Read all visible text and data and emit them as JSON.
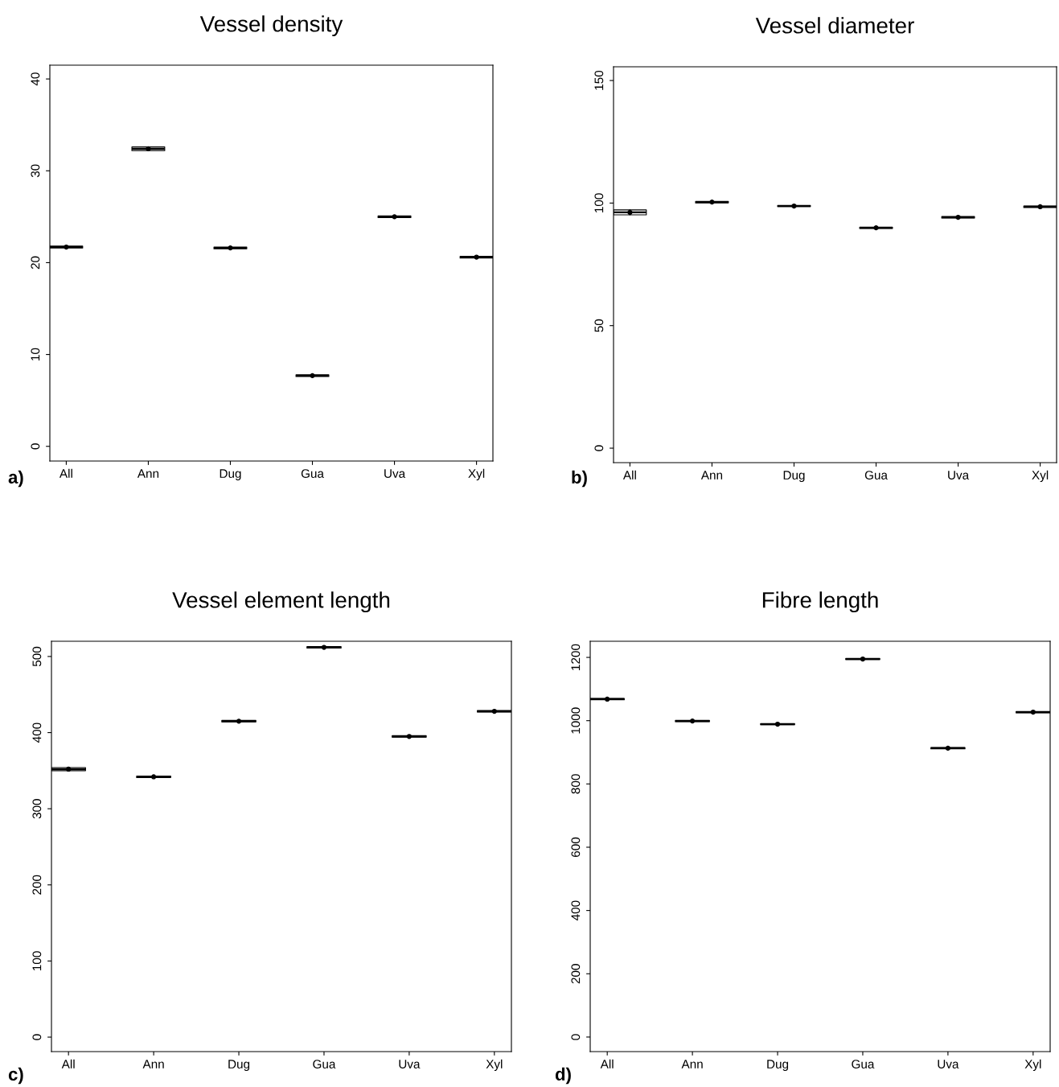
{
  "chart_data": [
    {
      "type": "box",
      "title": "Vessel density",
      "categories": [
        "All",
        "Ann",
        "Dug",
        "Gua",
        "Uva",
        "Xyl"
      ],
      "color": "#000000",
      "marker": "circle",
      "ylim": [
        -1.6,
        41.5
      ],
      "yticks": [
        0,
        10,
        20,
        30,
        40
      ],
      "grid": false,
      "annotations": [
        "a)"
      ],
      "boxes": [
        {
          "low": 21.6,
          "q1": 21.6,
          "median": 21.7,
          "q3": 21.8,
          "high": 21.8,
          "mean": 21.7
        },
        {
          "low": 32.2,
          "q1": 32.2,
          "median": 32.4,
          "q3": 32.6,
          "high": 32.6,
          "mean": 32.4
        },
        {
          "low": 21.5,
          "q1": 21.5,
          "median": 21.6,
          "q3": 21.7,
          "high": 21.7,
          "mean": 21.6
        },
        {
          "low": 7.6,
          "q1": 7.6,
          "median": 7.7,
          "q3": 7.8,
          "high": 7.8,
          "mean": 7.7
        },
        {
          "low": 24.9,
          "q1": 24.9,
          "median": 25.0,
          "q3": 25.1,
          "high": 25.1,
          "mean": 25.0
        },
        {
          "low": 20.5,
          "q1": 20.5,
          "median": 20.6,
          "q3": 20.7,
          "high": 20.7,
          "mean": 20.6
        }
      ]
    },
    {
      "type": "box",
      "title": "Vessel diameter",
      "categories": [
        "All",
        "Ann",
        "Dug",
        "Gua",
        "Uva",
        "Xyl"
      ],
      "color": "#000000",
      "marker": "circle",
      "ylim": [
        -5.9,
        155.6
      ],
      "yticks": [
        0,
        50,
        100,
        150
      ],
      "grid": false,
      "annotations": [
        "b)"
      ],
      "boxes": [
        {
          "low": 95.2,
          "q1": 95.2,
          "median": 96.2,
          "q3": 97.2,
          "high": 97.2,
          "mean": 96.2
        },
        {
          "low": 100.1,
          "q1": 100.1,
          "median": 100.4,
          "q3": 100.7,
          "high": 100.7,
          "mean": 100.4
        },
        {
          "low": 98.6,
          "q1": 98.6,
          "median": 98.8,
          "q3": 99.0,
          "high": 99.0,
          "mean": 98.8
        },
        {
          "low": 89.6,
          "q1": 89.6,
          "median": 89.9,
          "q3": 90.2,
          "high": 90.2,
          "mean": 89.9
        },
        {
          "low": 93.9,
          "q1": 93.9,
          "median": 94.2,
          "q3": 94.5,
          "high": 94.5,
          "mean": 94.2
        },
        {
          "low": 98.2,
          "q1": 98.2,
          "median": 98.5,
          "q3": 98.8,
          "high": 98.8,
          "mean": 98.5
        }
      ]
    },
    {
      "type": "box",
      "title": "Vessel element length",
      "categories": [
        "All",
        "Ann",
        "Dug",
        "Gua",
        "Uva",
        "Xyl"
      ],
      "color": "#000000",
      "marker": "circle",
      "ylim": [
        -19,
        520
      ],
      "yticks": [
        0,
        100,
        200,
        300,
        400,
        500
      ],
      "grid": false,
      "annotations": [
        "c)"
      ],
      "boxes": [
        {
          "low": 350,
          "q1": 350,
          "median": 352,
          "q3": 354,
          "high": 354,
          "mean": 352
        },
        {
          "low": 341,
          "q1": 341,
          "median": 342,
          "q3": 343,
          "high": 343,
          "mean": 342
        },
        {
          "low": 414,
          "q1": 414,
          "median": 415,
          "q3": 416,
          "high": 416,
          "mean": 415
        },
        {
          "low": 511,
          "q1": 511,
          "median": 512,
          "q3": 513,
          "high": 513,
          "mean": 512
        },
        {
          "low": 394,
          "q1": 394,
          "median": 395,
          "q3": 396,
          "high": 396,
          "mean": 395
        },
        {
          "low": 427,
          "q1": 427,
          "median": 428,
          "q3": 429,
          "high": 429,
          "mean": 428
        }
      ]
    },
    {
      "type": "box",
      "title": "Fibre length",
      "categories": [
        "All",
        "Ann",
        "Dug",
        "Gua",
        "Uva",
        "Xyl"
      ],
      "color": "#000000",
      "marker": "circle",
      "ylim": [
        -46,
        1251
      ],
      "yticks": [
        0,
        200,
        400,
        600,
        800,
        1000,
        1200
      ],
      "grid": false,
      "annotations": [
        "d)"
      ],
      "boxes": [
        {
          "low": 1066,
          "q1": 1066,
          "median": 1068,
          "q3": 1070,
          "high": 1070,
          "mean": 1068
        },
        {
          "low": 997,
          "q1": 997,
          "median": 999,
          "q3": 1001,
          "high": 1001,
          "mean": 999
        },
        {
          "low": 987,
          "q1": 987,
          "median": 989,
          "q3": 991,
          "high": 991,
          "mean": 989
        },
        {
          "low": 1193,
          "q1": 1193,
          "median": 1195,
          "q3": 1197,
          "high": 1197,
          "mean": 1195
        },
        {
          "low": 911,
          "q1": 911,
          "median": 913,
          "q3": 915,
          "high": 915,
          "mean": 913
        },
        {
          "low": 1025,
          "q1": 1025,
          "median": 1027,
          "q3": 1029,
          "high": 1029,
          "mean": 1027
        }
      ]
    }
  ]
}
